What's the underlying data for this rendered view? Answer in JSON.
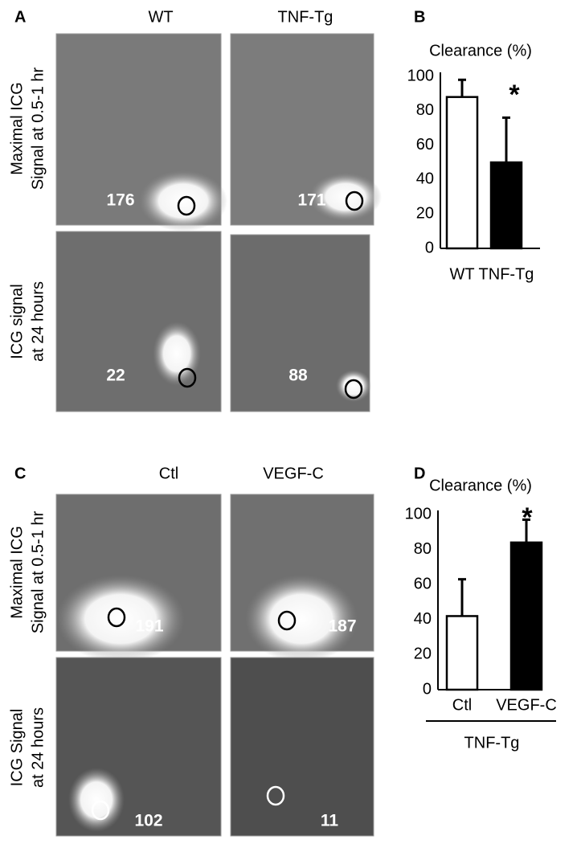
{
  "panels": [
    {
      "label": "A",
      "columns": [
        "WT",
        "TNF-Tg"
      ],
      "rows": [
        [
          "Maximal ICG",
          "Signal at 0.5-1 hr"
        ],
        [
          "ICG signal",
          "at 24 hours"
        ]
      ],
      "values": [
        176,
        171,
        22,
        88
      ]
    },
    {
      "label": "C",
      "columns": [
        "Ctl",
        "VEGF-C"
      ],
      "rows": [
        [
          "Maximal ICG",
          "Signal at 0.5-1 hr"
        ],
        [
          "ICG Signal",
          "at 24 hours"
        ]
      ],
      "values": [
        191,
        187,
        102,
        11
      ]
    }
  ],
  "chart_data": [
    {
      "type": "bar",
      "panel": "B",
      "title": "Clearance (%)",
      "categories": [
        "WT",
        "TNF-Tg"
      ],
      "values": [
        88,
        50
      ],
      "errors": [
        10,
        26
      ],
      "colors": [
        "#ffffff",
        "#000000"
      ],
      "ylim": [
        0,
        100
      ],
      "yticks": [
        0,
        20,
        40,
        60,
        80,
        100
      ],
      "grid": false,
      "annotation": "*"
    },
    {
      "type": "bar",
      "panel": "D",
      "title": "Clearance (%)",
      "categories": [
        "Ctl",
        "VEGF-C"
      ],
      "values": [
        42,
        84
      ],
      "errors": [
        21,
        13
      ],
      "colors": [
        "#ffffff",
        "#000000"
      ],
      "ylim": [
        0,
        100
      ],
      "yticks": [
        0,
        20,
        40,
        60,
        80,
        100
      ],
      "grid": false,
      "annotation": "*",
      "group_label": "TNF-Tg"
    }
  ]
}
